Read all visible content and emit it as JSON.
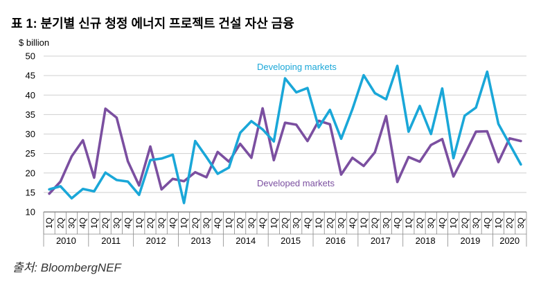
{
  "title": "표 1: 분기별 신규 청정 에너지 프로젝트 건설 자산 금융",
  "source": "출처: BloombergNEF",
  "chart_data": {
    "type": "line",
    "ylabel": "$ billion",
    "ylim": [
      10,
      50
    ],
    "yticks": [
      10,
      15,
      20,
      25,
      30,
      35,
      40,
      45,
      50
    ],
    "x": [
      "1Q",
      "2Q",
      "3Q",
      "4Q",
      "1Q",
      "2Q",
      "3Q",
      "4Q",
      "1Q",
      "2Q",
      "3Q",
      "4Q",
      "1Q",
      "2Q",
      "3Q",
      "4Q",
      "1Q",
      "2Q",
      "3Q",
      "4Q",
      "1Q",
      "2Q",
      "3Q",
      "4Q",
      "1Q",
      "2Q",
      "3Q",
      "4Q",
      "1Q",
      "2Q",
      "3Q",
      "4Q",
      "1Q",
      "2Q",
      "3Q",
      "4Q",
      "1Q",
      "2Q",
      "3Q",
      "4Q",
      "1Q",
      "2Q",
      "3Q"
    ],
    "years": [
      {
        "label": "2010",
        "quarters": 4
      },
      {
        "label": "2011",
        "quarters": 4
      },
      {
        "label": "2012",
        "quarters": 4
      },
      {
        "label": "2013",
        "quarters": 4
      },
      {
        "label": "2014",
        "quarters": 4
      },
      {
        "label": "2015",
        "quarters": 4
      },
      {
        "label": "2016",
        "quarters": 4
      },
      {
        "label": "2017",
        "quarters": 4
      },
      {
        "label": "2018",
        "quarters": 4
      },
      {
        "label": "2019",
        "quarters": 4
      },
      {
        "label": "2020",
        "quarters": 3
      }
    ],
    "series": [
      {
        "name": "Developing markets",
        "color": "#1aa7d8",
        "values": [
          15.8,
          16.6,
          13.5,
          15.9,
          15.3,
          20.1,
          18.2,
          17.8,
          14.4,
          23.3,
          23.7,
          24.7,
          12.3,
          28.2,
          24.1,
          19.8,
          21.4,
          30.3,
          33.3,
          31.2,
          28.1,
          44.3,
          40.7,
          41.8,
          31.7,
          36.2,
          28.8,
          36.4,
          45.1,
          40.5,
          38.9,
          47.5,
          30.6,
          37.2,
          30.0,
          41.7,
          23.8,
          34.7,
          36.8,
          46.0,
          32.6,
          27.4,
          22.2
        ]
      },
      {
        "name": "Developed markets",
        "color": "#7b4fa0",
        "values": [
          14.7,
          17.8,
          24.3,
          28.4,
          18.8,
          36.5,
          34.2,
          23.0,
          16.8,
          26.8,
          15.8,
          18.5,
          17.9,
          20.2,
          18.9,
          25.4,
          22.9,
          27.5,
          23.9,
          36.6,
          23.3,
          32.9,
          32.4,
          28.2,
          33.4,
          32.5,
          19.6,
          23.9,
          21.8,
          25.3,
          34.6,
          17.7,
          24.1,
          22.9,
          27.2,
          28.7,
          19.1,
          24.7,
          30.6,
          30.7,
          22.8,
          28.9,
          28.2
        ]
      }
    ],
    "annotations": [
      {
        "text": "Developing markets",
        "series": "Developing markets"
      },
      {
        "text": "Developed markets",
        "series": "Developed markets"
      }
    ]
  }
}
